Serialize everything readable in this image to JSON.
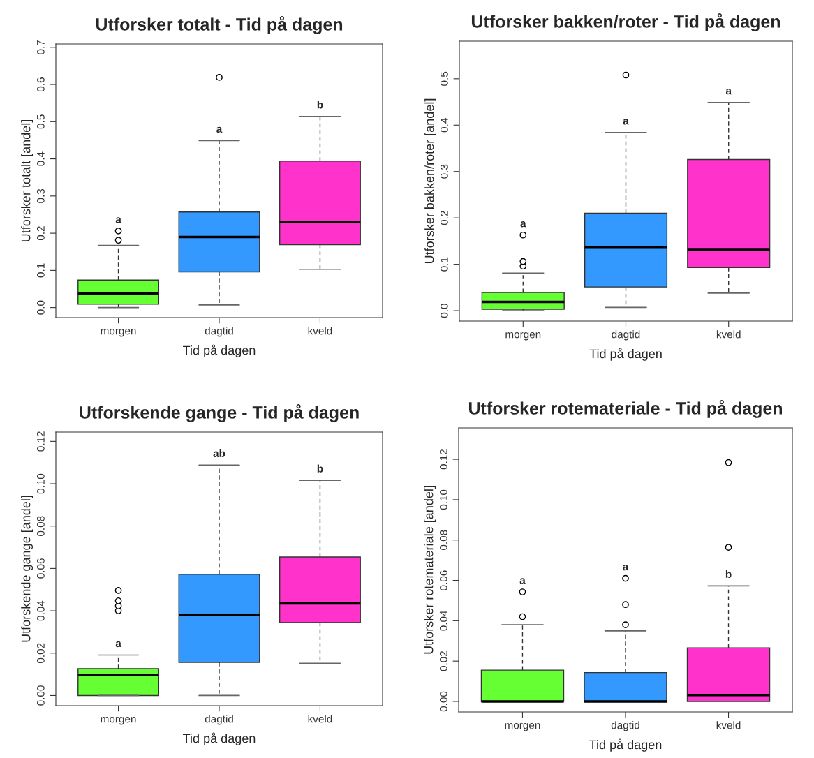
{
  "chart_data": [
    {
      "type": "box",
      "title": "Utforsker totalt - Tid på dagen",
      "xlabel": "Tid på dagen",
      "ylabel": "Utforsker totalt [andel]",
      "categories": [
        "morgen",
        "dagtid",
        "kveld"
      ],
      "colors": [
        "#66ff33",
        "#3399ff",
        "#ff33cc"
      ],
      "boxes": [
        {
          "low": 0,
          "q1": 0.009,
          "median": 0.038,
          "q3": 0.074,
          "high": 0.167,
          "outliers": [
            0.181,
            0.206
          ]
        },
        {
          "low": 0.007,
          "q1": 0.096,
          "median": 0.19,
          "q3": 0.257,
          "high": 0.449,
          "outliers": [
            0.619
          ]
        },
        {
          "low": 0.103,
          "q1": 0.169,
          "median": 0.23,
          "q3": 0.394,
          "high": 0.514
        }
      ],
      "ylim": [
        -0.027,
        0.709
      ],
      "yticks": [
        {
          "value": 0,
          "label": "0.0"
        },
        {
          "value": 0.1,
          "label": "0.1"
        },
        {
          "value": 0.2,
          "label": "0.2"
        },
        {
          "value": 0.3,
          "label": "0.3"
        },
        {
          "value": 0.4,
          "label": "0.4"
        },
        {
          "value": 0.5,
          "label": "0.5"
        },
        {
          "value": 0.6,
          "label": "0.6"
        },
        {
          "value": 0.7,
          "label": "0.7"
        }
      ],
      "annotations": [
        "a",
        "a",
        "b"
      ],
      "grid": false,
      "legend": false
    },
    {
      "type": "box",
      "title": "Utforsker bakken/roter - Tid på dagen",
      "xlabel": "Tid på dagen",
      "ylabel": "Utforsker bakken/roter [andel]",
      "categories": [
        "morgen",
        "dagtid",
        "kveld"
      ],
      "colors": [
        "#66ff33",
        "#3399ff",
        "#ff33cc"
      ],
      "boxes": [
        {
          "low": 0,
          "q1": 0.003,
          "median": 0.019,
          "q3": 0.039,
          "high": 0.081,
          "outliers": [
            0.096,
            0.106,
            0.163
          ]
        },
        {
          "low": 0.007,
          "q1": 0.051,
          "median": 0.136,
          "q3": 0.21,
          "high": 0.384,
          "outliers": [
            0.508
          ]
        },
        {
          "low": 0.038,
          "q1": 0.093,
          "median": 0.131,
          "q3": 0.326,
          "high": 0.449
        }
      ],
      "ylim": [
        -0.0225,
        0.581
      ],
      "yticks": [
        {
          "value": 0,
          "label": "0.0"
        },
        {
          "value": 0.1,
          "label": "0.1"
        },
        {
          "value": 0.2,
          "label": "0.2"
        },
        {
          "value": 0.3,
          "label": "0.3"
        },
        {
          "value": 0.4,
          "label": "0.4"
        },
        {
          "value": 0.5,
          "label": "0.5"
        }
      ],
      "annotations": [
        "a",
        "a",
        "a"
      ],
      "grid": false,
      "legend": false
    },
    {
      "type": "box",
      "title": "Utforskende gange - Tid på dagen",
      "xlabel": "Tid på dagen",
      "ylabel": "Utforskende gange [andel]",
      "categories": [
        "morgen",
        "dagtid",
        "kveld"
      ],
      "colors": [
        "#66ff33",
        "#3399ff",
        "#ff33cc"
      ],
      "boxes": [
        {
          "low": 0,
          "q1": 0,
          "median": 0.0096,
          "q3": 0.0127,
          "high": 0.0191,
          "outliers": [
            0.04,
            0.0423,
            0.0447,
            0.0496
          ]
        },
        {
          "low": 0,
          "q1": 0.0156,
          "median": 0.038,
          "q3": 0.0572,
          "high": 0.1088
        },
        {
          "low": 0.0152,
          "q1": 0.0344,
          "median": 0.0435,
          "q3": 0.0654,
          "high": 0.1016
        }
      ],
      "ylim": [
        -0.0048,
        0.1244
      ],
      "yticks": [
        {
          "value": 0,
          "label": "0.00"
        },
        {
          "value": 0.02,
          "label": "0.02"
        },
        {
          "value": 0.04,
          "label": "0.04"
        },
        {
          "value": 0.06,
          "label": "0.06"
        },
        {
          "value": 0.08,
          "label": "0.08"
        },
        {
          "value": 0.1,
          "label": "0.10"
        },
        {
          "value": 0.12,
          "label": "0.12"
        }
      ],
      "annotations": [
        "a",
        "ab",
        "b"
      ],
      "grid": false,
      "legend": false
    },
    {
      "type": "box",
      "title": "Utforsker rotemateriale - Tid på dagen",
      "xlabel": "Tid på dagen",
      "ylabel": "Utforsker rotemateriale [andel]",
      "categories": [
        "morgen",
        "dagtid",
        "kveld"
      ],
      "colors": [
        "#66ff33",
        "#3399ff",
        "#ff33cc"
      ],
      "boxes": [
        {
          "low": 0,
          "q1": 0,
          "median": 0,
          "q3": 0.0155,
          "high": 0.038,
          "outliers": [
            0.042,
            0.0543
          ]
        },
        {
          "low": 0,
          "q1": 0,
          "median": 0,
          "q3": 0.0143,
          "high": 0.035,
          "outliers": [
            0.038,
            0.048,
            0.061
          ]
        },
        {
          "low": 0,
          "q1": 0,
          "median": 0.0032,
          "q3": 0.0266,
          "high": 0.0573,
          "outliers": [
            0.0764,
            0.1184
          ]
        }
      ],
      "ylim": [
        -0.0052,
        0.1356
      ],
      "yticks": [
        {
          "value": 0,
          "label": "0.00"
        },
        {
          "value": 0.02,
          "label": "0.02"
        },
        {
          "value": 0.04,
          "label": "0.04"
        },
        {
          "value": 0.06,
          "label": "0.06"
        },
        {
          "value": 0.08,
          "label": "0.08"
        },
        {
          "value": 0.1,
          "label": "0.10"
        },
        {
          "value": 0.12,
          "label": "0.12"
        }
      ],
      "annotations": [
        "a",
        "a",
        "b"
      ],
      "grid": false,
      "legend": false
    }
  ]
}
